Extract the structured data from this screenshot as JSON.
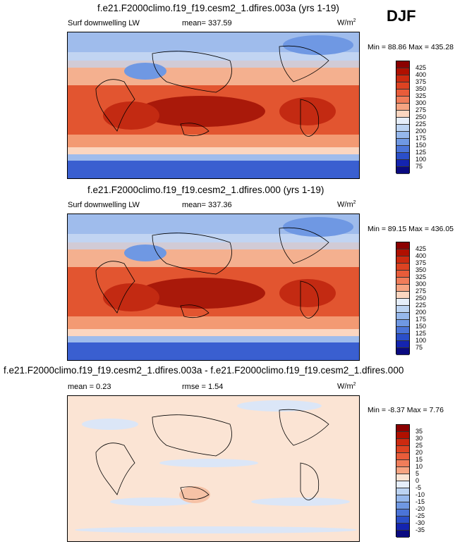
{
  "season": "DJF",
  "panels": [
    {
      "title": "f.e21.F2000climo.f19_f19.cesm2_1.dfires.003a (yrs 1-19)",
      "left_label": "Surf downwelling LW",
      "mid_label": "mean= 337.59",
      "units": "W/m",
      "units_sup": "2",
      "minmax": "Min =  88.86 Max = 435.28",
      "kind": "abs"
    },
    {
      "title": "f.e21.F2000climo.f19_f19.cesm2_1.dfires.000 (yrs 1-19)",
      "left_label": "Surf downwelling LW",
      "mid_label": "mean= 337.36",
      "units": "W/m",
      "units_sup": "2",
      "minmax": "Min =  89.15 Max = 436.05",
      "kind": "abs"
    },
    {
      "title": "f.e21.F2000climo.f19_f19.cesm2_1.dfires.003a - f.e21.F2000climo.f19_f19.cesm2_1.dfires.000",
      "left_label": "mean =   0.23",
      "mid_label": "rmse =   1.54",
      "units": "W/m",
      "units_sup": "2",
      "minmax": "Min = -8.37 Max =  7.76",
      "kind": "diff"
    }
  ],
  "colorbar_abs": {
    "labels": [
      "425",
      "400",
      "375",
      "350",
      "325",
      "300",
      "275",
      "250",
      "225",
      "200",
      "175",
      "150",
      "125",
      "100",
      "75"
    ],
    "colors": [
      "#8b0000",
      "#b01000",
      "#cc2a10",
      "#dd4322",
      "#e85c3a",
      "#f07d5a",
      "#f6a482",
      "#fbd6c0",
      "#e6eefa",
      "#bcd3f2",
      "#96b8ec",
      "#6f98e3",
      "#4b74d8",
      "#2b4fc9",
      "#1424b0",
      "#0a0a80"
    ]
  },
  "colorbar_diff": {
    "labels": [
      "35",
      "30",
      "25",
      "20",
      "15",
      "10",
      "5",
      "0",
      "-5",
      "-10",
      "-15",
      "-20",
      "-25",
      "-30",
      "-35"
    ],
    "colors": [
      "#8b0000",
      "#b01000",
      "#cc2a10",
      "#dd4322",
      "#e85c3a",
      "#f07d5a",
      "#f6a482",
      "#fbe4d4",
      "#e6eefa",
      "#bcd3f2",
      "#96b8ec",
      "#6f98e3",
      "#4b74d8",
      "#2b4fc9",
      "#1424b0",
      "#0a0a80"
    ]
  },
  "chart_data": [
    {
      "type": "heatmap",
      "title": "f.e21.F2000climo.f19_f19.cesm2_1.dfires.003a (yrs 1-19)",
      "variable": "Surf downwelling LW",
      "units": "W/m2",
      "mean": 337.59,
      "min": 88.86,
      "max": 435.28,
      "contour_levels": [
        75,
        100,
        125,
        150,
        175,
        200,
        225,
        250,
        275,
        300,
        325,
        350,
        375,
        400,
        425
      ]
    },
    {
      "type": "heatmap",
      "title": "f.e21.F2000climo.f19_f19.cesm2_1.dfires.000 (yrs 1-19)",
      "variable": "Surf downwelling LW",
      "units": "W/m2",
      "mean": 337.36,
      "min": 89.15,
      "max": 436.05,
      "contour_levels": [
        75,
        100,
        125,
        150,
        175,
        200,
        225,
        250,
        275,
        300,
        325,
        350,
        375,
        400,
        425
      ]
    },
    {
      "type": "heatmap",
      "title": "f.e21.F2000climo.f19_f19.cesm2_1.dfires.003a - f.e21.F2000climo.f19_f19.cesm2_1.dfires.000",
      "units": "W/m2",
      "mean": 0.23,
      "rmse": 1.54,
      "min": -8.37,
      "max": 7.76,
      "contour_levels": [
        -35,
        -30,
        -25,
        -20,
        -15,
        -10,
        -5,
        0,
        5,
        10,
        15,
        20,
        25,
        30,
        35
      ]
    }
  ]
}
